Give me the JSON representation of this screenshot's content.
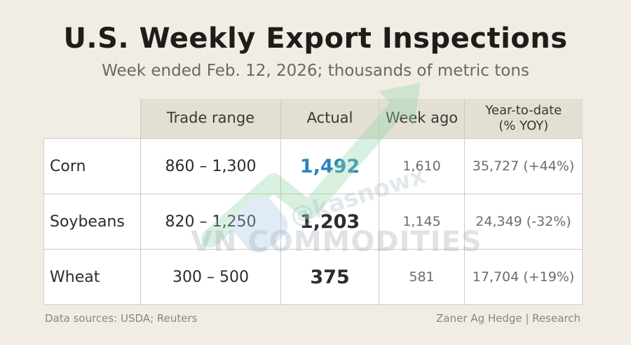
{
  "header": {
    "title": "U.S. Weekly Export Inspections",
    "subtitle": "Week ended Feb. 12, 2026; thousands of metric tons"
  },
  "table": {
    "columns": [
      "Trade range",
      "Actual",
      "Week ago",
      "Year-to-date",
      "(% YOY)"
    ],
    "rows": [
      {
        "name": "Corn",
        "range": "860 – 1,300",
        "actual": "1,492",
        "week_ago": "1,610",
        "ytd": "35,727 (+44%)"
      },
      {
        "name": "Soybeans",
        "range": "820 – 1,250",
        "actual": "1,203",
        "week_ago": "1,145",
        "ytd": "24,349 (-32%)"
      },
      {
        "name": "Wheat",
        "range": "300 – 500",
        "actual": "375",
        "week_ago": "581",
        "ytd": "17,704 (+19%)"
      }
    ]
  },
  "watermark": {
    "text": "VN COMMODITIES",
    "handle": "@kasnowx"
  },
  "footer": {
    "sources": "Data sources: USDA; Reuters",
    "credit": "Zaner Ag Hedge | Research"
  },
  "colors": {
    "background": "#f1ede4",
    "header_band": "#e3dfd2",
    "highlight_value": "#2a86b8",
    "watermark_arrow": "#8fd6a8"
  }
}
